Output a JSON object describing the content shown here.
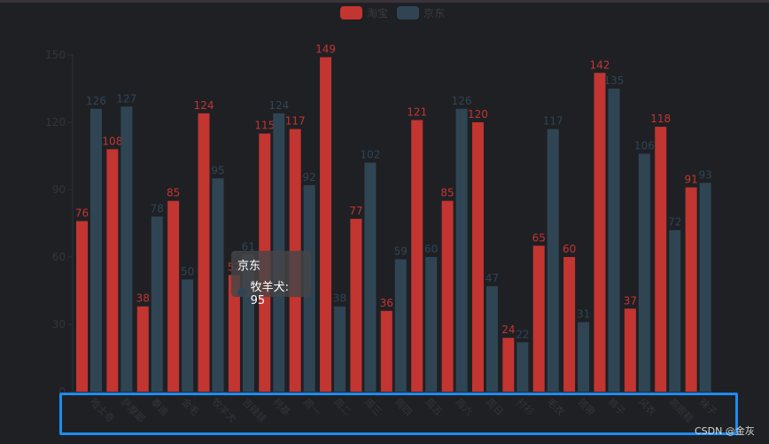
{
  "chart_data": {
    "type": "bar",
    "title": "",
    "xlabel": "",
    "ylabel": "",
    "ylim": [
      0,
      150
    ],
    "yticks": [
      0,
      30,
      60,
      90,
      120,
      150
    ],
    "grid": false,
    "legend_position": "top",
    "categories": [
      "哈士奇",
      "萨摩耶",
      "泰迪",
      "金毛",
      "牧羊犬",
      "吉娃娃",
      "柯基",
      "周一",
      "周二",
      "周三",
      "周四",
      "周五",
      "周六",
      "周日",
      "衬衫",
      "毛衣",
      "领带",
      "裤子",
      "风衣",
      "高跟鞋",
      "袜子"
    ],
    "series": [
      {
        "name": "淘宝",
        "color": "#c23531",
        "values": [
          76,
          108,
          38,
          85,
          124,
          52,
          115,
          117,
          149,
          77,
          36,
          121,
          85,
          120,
          24,
          65,
          60,
          142,
          37,
          118,
          91
        ]
      },
      {
        "name": "京东",
        "color": "#2f4554",
        "values": [
          126,
          127,
          78,
          50,
          95,
          61,
          124,
          92,
          38,
          102,
          59,
          60,
          126,
          47,
          22,
          117,
          31,
          135,
          106,
          72,
          93
        ]
      }
    ]
  },
  "legend": [
    {
      "label": "淘宝",
      "color": "#c23531"
    },
    {
      "label": "京东",
      "color": "#2f4554"
    }
  ],
  "tooltip": {
    "series": "京东",
    "item": "牧羊犬: 95",
    "color": "#2f4554"
  },
  "watermark": "CSDN @金灰"
}
